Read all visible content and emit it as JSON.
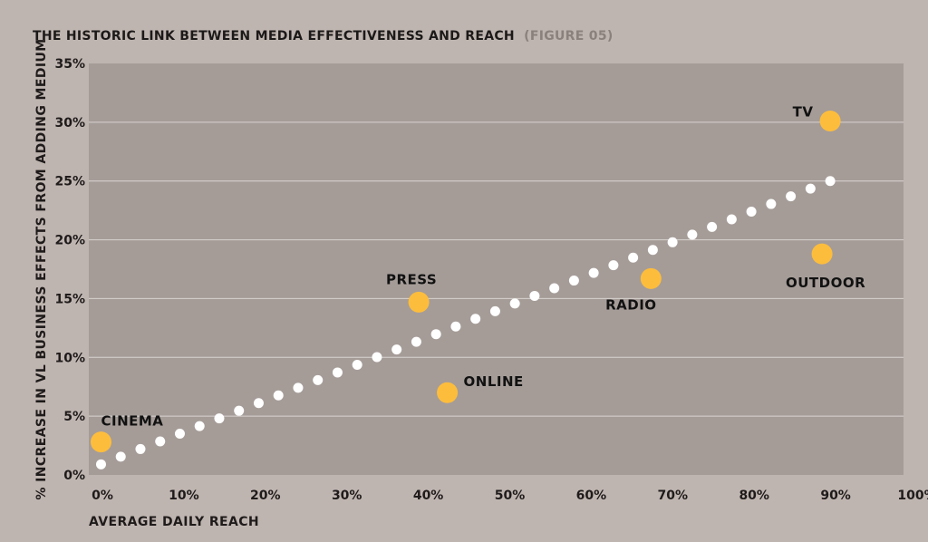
{
  "title": {
    "main": "THE HISTORIC LINK BETWEEN MEDIA EFFECTIVENESS AND REACH",
    "figure": "(FIGURE 05)"
  },
  "colors": {
    "page_background": "#bfb5b0",
    "plot_background": "#a59c98",
    "gridline": "#d9d3d0",
    "media_point": "#fdbd3c",
    "trend_dot": "#ffffff"
  },
  "chart_data": {
    "type": "scatter",
    "xlabel": "AVERAGE DAILY REACH",
    "ylabel": "% INCREASE IN VL BUSINESS EFFECTS FROM ADDING MEDIUM",
    "xlim": [
      0,
      100
    ],
    "ylim": [
      0,
      35
    ],
    "x_ticks": [
      "0%",
      "10%",
      "20%",
      "30%",
      "40%",
      "50%",
      "60%",
      "70%",
      "80%",
      "90%",
      "100%"
    ],
    "y_ticks": [
      "0%",
      "5%",
      "10%",
      "15%",
      "20%",
      "25%",
      "30%",
      "35%"
    ],
    "grid": "horizontal",
    "points": [
      {
        "label": "CINEMA",
        "x": 1.5,
        "y": 2.8
      },
      {
        "label": "PRESS",
        "x": 40.5,
        "y": 14.7
      },
      {
        "label": "ONLINE",
        "x": 44,
        "y": 7.0
      },
      {
        "label": "RADIO",
        "x": 69,
        "y": 16.7
      },
      {
        "label": "TV",
        "x": 91,
        "y": 30.1
      },
      {
        "label": "OUTDOOR",
        "x": 90,
        "y": 18.8
      }
    ],
    "trend_line": {
      "style": "dotted",
      "x_start": 1.5,
      "y_start": 0.9,
      "x_end": 91,
      "y_end": 25.0,
      "dot_count": 38
    }
  }
}
